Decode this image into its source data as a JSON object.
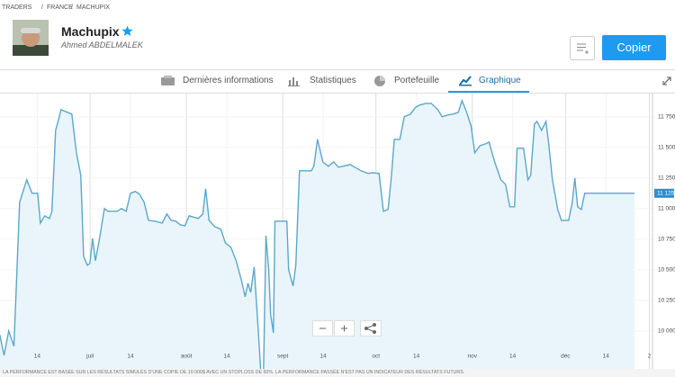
{
  "header": {
    "breadcrumb": [
      "TRADERS",
      "FRANCE",
      "MACHUPIX"
    ],
    "separator": "/",
    "name": "Machupix",
    "username": "Ahmed ABDELMALEK",
    "button": "Copier"
  },
  "tabs": [
    "Dernières informations",
    "Statistiques",
    "Portefeuille",
    "Graphique"
  ],
  "chart_data": {
    "type": "line",
    "color": "#5ba8c9",
    "fill_color": "#eaf4fb",
    "x": [
      0.9,
      2.3,
      3.8,
      5.5,
      7.3,
      9.6,
      11.3,
      13.1,
      14.0,
      15.4,
      16.9,
      17.7,
      18.9,
      20.1,
      20.6,
      22.7,
      24.1,
      25.6,
      27.0,
      27.9,
      29.1,
      29.9,
      30.8,
      31.7,
      32.8,
      34.6,
      35.8,
      38.7,
      40.1,
      41.6,
      43.0,
      44.5,
      45.9,
      47.4,
      48.8,
      50.9,
      53.2,
      54.7,
      56.1,
      57.6,
      59.0,
      60.5,
      61.9,
      64.8,
      66.3,
      67.2,
      68.3,
      70.1,
      72.1,
      73.5,
      75.3,
      77.0,
      78.8,
      79.9,
      80.8,
      81.7,
      82.8,
      84.0,
      84.9,
      85.8,
      86.6,
      87.5,
      88.1,
      89.0,
      89.5,
      93.3,
      93.9,
      95.3,
      96.2,
      97.4,
      101.2,
      102.0,
      103.2,
      104.9,
      106.7,
      108.4,
      109.9,
      111.3,
      113.7,
      115.7,
      117.2,
      119.5,
      120.9,
      123.0,
      124.4,
      125.9,
      127.0,
      127.9,
      129.7,
      131.1,
      133.1,
      134.6,
      136.0,
      138.1,
      139.8,
      141.9,
      143.3,
      145.1,
      146.8,
      148.5,
      149.7,
      151.2,
      152.6,
      153.8,
      155.5,
      157.3,
      158.4,
      160.2,
      162.2,
      163.7,
      165.1,
      166.6,
      167.4,
      169.5,
      170.9,
      171.8,
      173.0,
      173.8,
      175.3,
      176.7,
      177.6,
      178.8,
      180.5,
      181.7,
      184.0,
      185.2,
      186.0,
      186.9,
      188.1,
      189.2,
      205.2
    ],
    "values": [
      9971,
      9801,
      10000,
      9875,
      11051,
      11235,
      11125,
      11125,
      10882,
      10941,
      10919,
      10978,
      11640,
      11750,
      11809,
      11787,
      11772,
      11456,
      11272,
      10610,
      10537,
      10551,
      10757,
      10574,
      10721,
      11000,
      10978,
      10978,
      11000,
      10978,
      11125,
      11140,
      11118,
      11051,
      10904,
      10897,
      10882,
      10956,
      10904,
      10897,
      10868,
      10860,
      10941,
      10919,
      10956,
      11162,
      10904,
      10853,
      10831,
      10721,
      10684,
      10574,
      10404,
      10279,
      10390,
      10316,
      10522,
      10059,
      9676,
      9654,
      10779,
      10500,
      10132,
      9985,
      10897,
      10897,
      10500,
      10368,
      10537,
      11309,
      11309,
      11346,
      11566,
      11382,
      11346,
      11382,
      11338,
      11346,
      11360,
      11331,
      11309,
      11287,
      11294,
      11287,
      10978,
      10993,
      11272,
      11566,
      11566,
      11750,
      11772,
      11824,
      11846,
      11860,
      11860,
      11809,
      11750,
      11765,
      11772,
      11787,
      11882,
      11787,
      11676,
      11456,
      11515,
      11529,
      11544,
      11382,
      11235,
      11199,
      11015,
      11015,
      11493,
      11493,
      11235,
      11272,
      11691,
      11713,
      11640,
      11713,
      11529,
      11235,
      10993,
      10904,
      10904,
      11051,
      11250,
      11015,
      10993,
      11125,
      11125
    ],
    "last_value_label": "11 125",
    "xlim": [
      1,
      211
    ],
    "xticks": [
      {
        "value": 13,
        "label": "14"
      },
      {
        "value": 30,
        "label": "juil"
      },
      {
        "value": 43,
        "label": "14"
      },
      {
        "value": 61,
        "label": "août"
      },
      {
        "value": 74,
        "label": "14"
      },
      {
        "value": 92,
        "label": "sept"
      },
      {
        "value": 105,
        "label": "14"
      },
      {
        "value": 122,
        "label": "oct"
      },
      {
        "value": 135,
        "label": "14"
      },
      {
        "value": 153,
        "label": "nov"
      },
      {
        "value": 166,
        "label": "14"
      },
      {
        "value": 183,
        "label": "déc"
      },
      {
        "value": 196,
        "label": "14"
      },
      {
        "value": 210,
        "label": "2"
      }
    ],
    "ylim": [
      9620,
      11940
    ],
    "yticks": [
      {
        "value": 10000,
        "label": "10 000"
      },
      {
        "value": 10250,
        "label": "10 250"
      },
      {
        "value": 10500,
        "label": "10 500"
      },
      {
        "value": 10750,
        "label": "10 750"
      },
      {
        "value": 11000,
        "label": "11 000"
      },
      {
        "value": 11250,
        "label": "11 250"
      },
      {
        "value": 11500,
        "label": "11 500"
      },
      {
        "value": 11750,
        "label": "11 750"
      }
    ]
  },
  "footnote": "LA PERFORMANCE EST BASÉE SUR LES RÉSULTATS SIMULÉS D'UNE COPIE DE 10 000$ AVEC UN STOPLOSS DE 60%. LA PERFORMANCE PASSÉE N'EST PAS UN INDICATEUR DES RÉSULTATS FUTURS."
}
